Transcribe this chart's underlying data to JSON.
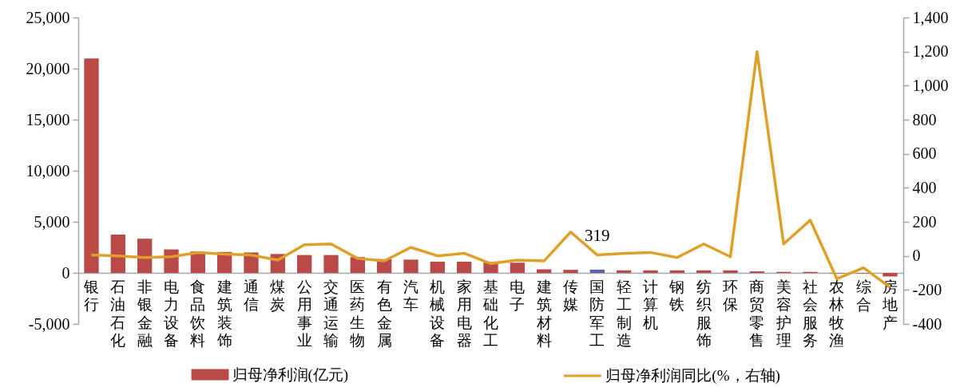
{
  "chart_data": {
    "type": "bar",
    "categories": [
      "银行",
      "石油石化",
      "非银金融",
      "电力设备",
      "食品饮料",
      "建筑装饰",
      "通信",
      "煤炭",
      "公用事业",
      "交通运输",
      "医药生物",
      "有色金属",
      "汽车",
      "机械设备",
      "家用电器",
      "基础化工",
      "电子",
      "建筑材料",
      "传媒",
      "国防军工",
      "轻工制造",
      "计算机",
      "钢铁",
      "纺织服饰",
      "环保",
      "商贸零售",
      "美容护理",
      "社会服务",
      "农林牧渔",
      "综合",
      "房地产"
    ],
    "series": [
      {
        "name": "归母净利润(亿元)",
        "color": "#b94a48",
        "colors": [
          "#b94a48",
          "#b94a48",
          "#b94a48",
          "#b94a48",
          "#b94a48",
          "#b94a48",
          "#b94a48",
          "#b94a48",
          "#b94a48",
          "#b94a48",
          "#b94a48",
          "#b94a48",
          "#b94a48",
          "#b94a48",
          "#b94a48",
          "#b94a48",
          "#b94a48",
          "#b94a48",
          "#b94a48",
          "#5b64a0",
          "#b94a48",
          "#b94a48",
          "#b94a48",
          "#b94a48",
          "#b94a48",
          "#b94a48",
          "#b94a48",
          "#b94a48",
          "#b94a48",
          "#b94a48",
          "#b94a48"
        ],
        "values": [
          21000,
          3750,
          3350,
          2300,
          2100,
          2050,
          2000,
          1850,
          1750,
          1750,
          1550,
          1350,
          1300,
          1100,
          1100,
          1050,
          1000,
          350,
          300,
          319,
          250,
          250,
          250,
          250,
          250,
          150,
          100,
          100,
          -50,
          -50,
          -350
        ],
        "value_labels": [
          null,
          null,
          null,
          null,
          null,
          null,
          null,
          null,
          null,
          null,
          null,
          null,
          null,
          null,
          null,
          null,
          null,
          null,
          null,
          "319",
          null,
          null,
          null,
          null,
          null,
          null,
          null,
          null,
          null,
          null,
          null
        ]
      },
      {
        "name": "归母净利润同比(%，右轴)",
        "type": "line",
        "axis": "y2",
        "color": "#dfa02a",
        "values": [
          5,
          0,
          -10,
          -5,
          20,
          10,
          5,
          -25,
          65,
          70,
          -15,
          -30,
          50,
          0,
          15,
          -45,
          -25,
          -30,
          140,
          5,
          15,
          20,
          -10,
          70,
          -5,
          1200,
          70,
          210,
          -135,
          -70,
          -185
        ]
      }
    ],
    "ylim": [
      -5000,
      25000
    ],
    "yticks": [
      {
        "value": -5000,
        "label": "-5,000"
      },
      0,
      {
        "value": 5000,
        "label": "5,000"
      },
      {
        "value": 10000,
        "label": "10,000"
      },
      {
        "value": 15000,
        "label": "15,000"
      },
      {
        "value": 20000,
        "label": "20,000"
      },
      {
        "value": 25000,
        "label": "25,000"
      }
    ],
    "y2lim": [
      -400,
      1400
    ],
    "y2ticks": [
      -400,
      -200,
      0,
      200,
      400,
      600,
      800,
      {
        "value": 1000,
        "label": "1,000"
      },
      {
        "value": 1200,
        "label": "1,200"
      },
      {
        "value": 1400,
        "label": "1,400"
      }
    ],
    "legend": "bottom"
  }
}
